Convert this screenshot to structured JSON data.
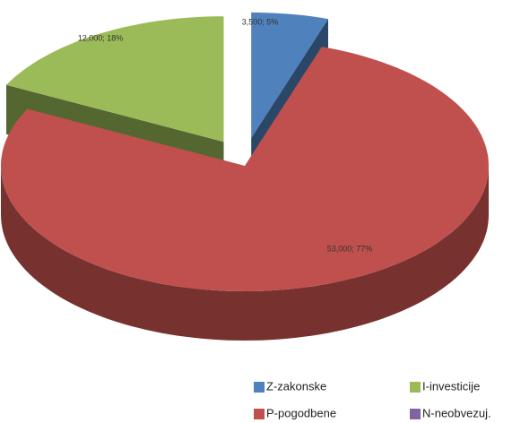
{
  "chart_data": {
    "type": "pie3d",
    "categories": [
      "Z-zakonske",
      "P-pogodbene",
      "I-investicije",
      "N-neobvezuj."
    ],
    "values": [
      3500,
      53000,
      12000,
      0
    ],
    "value_labels": [
      "3,500; 5%",
      "53,000; 77%",
      "12,000; 18%",
      null
    ],
    "colors": [
      "#4f81bd",
      "#c0504d",
      "#9bbb59",
      "#8064a2"
    ]
  }
}
